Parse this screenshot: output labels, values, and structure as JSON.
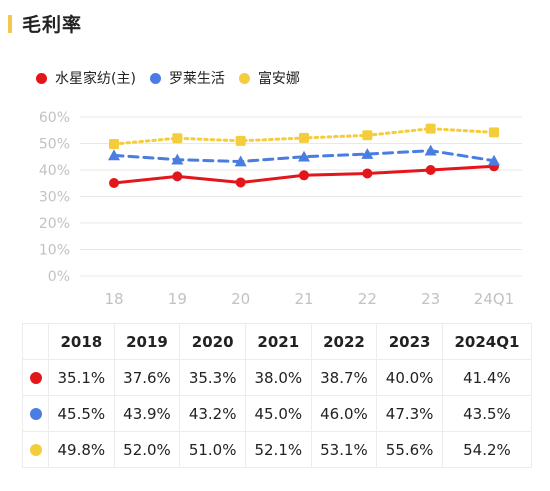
{
  "title": "毛利率",
  "colors": {
    "accent": "#f2c94c",
    "grid": "#e8e8e8",
    "axis_text": "#c2c2c2"
  },
  "chart_data": {
    "type": "line",
    "title": "毛利率",
    "categories": [
      "18",
      "19",
      "20",
      "21",
      "22",
      "23",
      "24Q1"
    ],
    "y_ticks": [
      "0%",
      "10%",
      "20%",
      "30%",
      "40%",
      "50%",
      "60%"
    ],
    "ylim": [
      0,
      60
    ],
    "grid": true,
    "legend_position": "top-left",
    "series": [
      {
        "name": "水星家纺(主)",
        "color": "#e3161b",
        "line": "solid",
        "marker": "circle",
        "values": [
          35.1,
          37.6,
          35.3,
          38.0,
          38.7,
          40.0,
          41.4
        ]
      },
      {
        "name": "罗莱生活",
        "color": "#4a7de2",
        "line": "dashed",
        "marker": "triangle",
        "values": [
          45.5,
          43.9,
          43.2,
          45.0,
          46.0,
          47.3,
          43.5
        ]
      },
      {
        "name": "富安娜",
        "color": "#f5cd3c",
        "line": "dotted",
        "marker": "square",
        "values": [
          49.8,
          52.0,
          51.0,
          52.1,
          53.1,
          55.6,
          54.2
        ]
      }
    ]
  },
  "table": {
    "headers": [
      "2018",
      "2019",
      "2020",
      "2021",
      "2022",
      "2023",
      "2024Q1"
    ],
    "rows": [
      {
        "color": "#e3161b",
        "cells": [
          "35.1%",
          "37.6%",
          "35.3%",
          "38.0%",
          "38.7%",
          "40.0%",
          "41.4%"
        ]
      },
      {
        "color": "#4a7de2",
        "cells": [
          "45.5%",
          "43.9%",
          "43.2%",
          "45.0%",
          "46.0%",
          "47.3%",
          "43.5%"
        ]
      },
      {
        "color": "#f5cd3c",
        "cells": [
          "49.8%",
          "52.0%",
          "51.0%",
          "52.1%",
          "53.1%",
          "55.6%",
          "54.2%"
        ]
      }
    ]
  }
}
